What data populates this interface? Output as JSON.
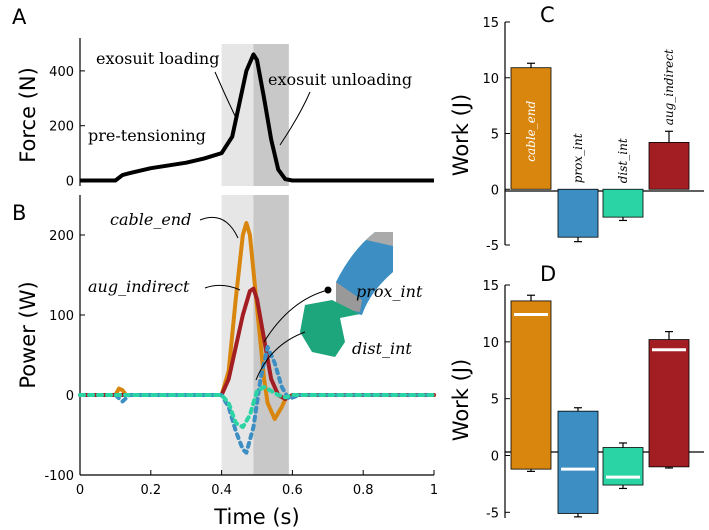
{
  "colors": {
    "cable_end": "#d9860f",
    "prox_int": "#3d8ec2",
    "dist_int": "#2bd4a4",
    "aug_indirect": "#a31e22",
    "force": "#000000",
    "shade_light": "#e6e6e6",
    "shade_dark": "#c8c8c8"
  },
  "chart_data": [
    {
      "id": "A",
      "type": "line",
      "panel_label": "A",
      "ylabel": "Force (N)",
      "xlim": [
        0,
        1
      ],
      "ylim": [
        -20,
        520
      ],
      "yticks": [
        "0",
        "200",
        "400"
      ],
      "ytick_values": [
        0,
        200,
        400
      ],
      "shading": [
        {
          "name": "exosuit loading",
          "x": [
            0.4,
            0.49
          ]
        },
        {
          "name": "exosuit unloading",
          "x": [
            0.49,
            0.59
          ]
        }
      ],
      "annotations": [
        "exosuit loading",
        "exosuit unloading",
        "pre-tensioning"
      ],
      "series": [
        {
          "name": "Force",
          "x": [
            0,
            0.1,
            0.12,
            0.15,
            0.2,
            0.25,
            0.3,
            0.35,
            0.4,
            0.43,
            0.45,
            0.47,
            0.49,
            0.5,
            0.52,
            0.54,
            0.56,
            0.58,
            0.6,
            0.7,
            1.0
          ],
          "y": [
            0,
            0,
            20,
            30,
            45,
            55,
            65,
            80,
            100,
            160,
            280,
            400,
            460,
            440,
            300,
            150,
            40,
            5,
            0,
            0,
            0
          ]
        }
      ]
    },
    {
      "id": "B",
      "type": "line",
      "panel_label": "B",
      "xlabel": "Time (s)",
      "ylabel": "Power (W)",
      "xlim": [
        0,
        1
      ],
      "ylim": [
        -100,
        250
      ],
      "xticks": [
        "0",
        "0.2",
        "0.4",
        "0.6",
        "0.8",
        "1"
      ],
      "xtick_values": [
        0,
        0.2,
        0.4,
        0.6,
        0.8,
        1
      ],
      "yticks": [
        "-100",
        "0",
        "100",
        "200"
      ],
      "ytick_values": [
        -100,
        0,
        100,
        200
      ],
      "annotations": [
        "cable_end",
        "aug_indirect",
        "prox_int",
        "dist_int"
      ],
      "series": [
        {
          "name": "cable_end",
          "color_key": "cable_end",
          "dash": false,
          "x": [
            0,
            0.1,
            0.11,
            0.12,
            0.13,
            0.4,
            0.42,
            0.44,
            0.46,
            0.47,
            0.48,
            0.5,
            0.52,
            0.53,
            0.55,
            0.57,
            0.58,
            0.6,
            1.0
          ],
          "y": [
            0,
            0,
            8,
            6,
            0,
            0,
            30,
            120,
            200,
            215,
            200,
            110,
            20,
            -10,
            -30,
            -15,
            -5,
            0,
            0
          ]
        },
        {
          "name": "aug_indirect",
          "color_key": "aug_indirect",
          "dash": false,
          "x": [
            0,
            0.4,
            0.42,
            0.44,
            0.46,
            0.48,
            0.49,
            0.5,
            0.52,
            0.54,
            0.56,
            0.58,
            0.6,
            1.0
          ],
          "y": [
            0,
            0,
            20,
            60,
            100,
            130,
            133,
            120,
            70,
            20,
            0,
            -5,
            0,
            0
          ]
        },
        {
          "name": "prox_int",
          "color_key": "prox_int",
          "dash": true,
          "x": [
            0,
            0.1,
            0.12,
            0.14,
            0.4,
            0.42,
            0.44,
            0.46,
            0.47,
            0.49,
            0.51,
            0.53,
            0.55,
            0.57,
            0.59,
            0.62,
            1.0
          ],
          "y": [
            0,
            0,
            -8,
            0,
            0,
            -15,
            -45,
            -68,
            -72,
            -40,
            20,
            60,
            40,
            10,
            -5,
            0,
            0
          ]
        },
        {
          "name": "dist_int",
          "color_key": "dist_int",
          "dash": true,
          "x": [
            0,
            0.4,
            0.42,
            0.44,
            0.46,
            0.48,
            0.5,
            0.52,
            0.54,
            0.56,
            0.58,
            0.6,
            1.0
          ],
          "y": [
            0,
            0,
            -10,
            -35,
            -40,
            -25,
            5,
            10,
            5,
            0,
            -3,
            0,
            0
          ]
        }
      ]
    },
    {
      "id": "C",
      "type": "bar",
      "panel_label": "C",
      "ylabel": "Work (J)",
      "ylim": [
        -5,
        15
      ],
      "yticks": [
        "-5",
        "0",
        "5",
        "10",
        "15"
      ],
      "ytick_values": [
        -5,
        0,
        5,
        10,
        15
      ],
      "categories": [
        "cable_end",
        "prox_int",
        "dist_int",
        "aug_indirect"
      ],
      "values": [
        10.9,
        -4.3,
        -2.5,
        4.2
      ],
      "errors": [
        0.4,
        0.4,
        0.3,
        1.0
      ],
      "color_keys": [
        "cable_end",
        "prox_int",
        "dist_int",
        "aug_indirect"
      ]
    },
    {
      "id": "D",
      "type": "bar",
      "panel_label": "D",
      "ylabel": "Work (J)",
      "ylim": [
        -5.5,
        15
      ],
      "yticks": [
        "-5",
        "0",
        "5",
        "10",
        "15"
      ],
      "ytick_values": [
        -5,
        0,
        5,
        10,
        15
      ],
      "categories": [
        "cable_end",
        "prox_int",
        "dist_int",
        "aug_indirect"
      ],
      "top": [
        13.6,
        3.9,
        0.7,
        10.2
      ],
      "bottom": [
        -1.2,
        -5.1,
        -2.6,
        -1.0
      ],
      "top_err": [
        0.5,
        0.3,
        0.4,
        0.7
      ],
      "bottom_err": [
        0.2,
        0.3,
        0.3,
        0.1
      ],
      "net": [
        12.4,
        -1.2,
        -1.9,
        9.3
      ],
      "color_keys": [
        "cable_end",
        "prox_int",
        "dist_int",
        "aug_indirect"
      ]
    }
  ]
}
